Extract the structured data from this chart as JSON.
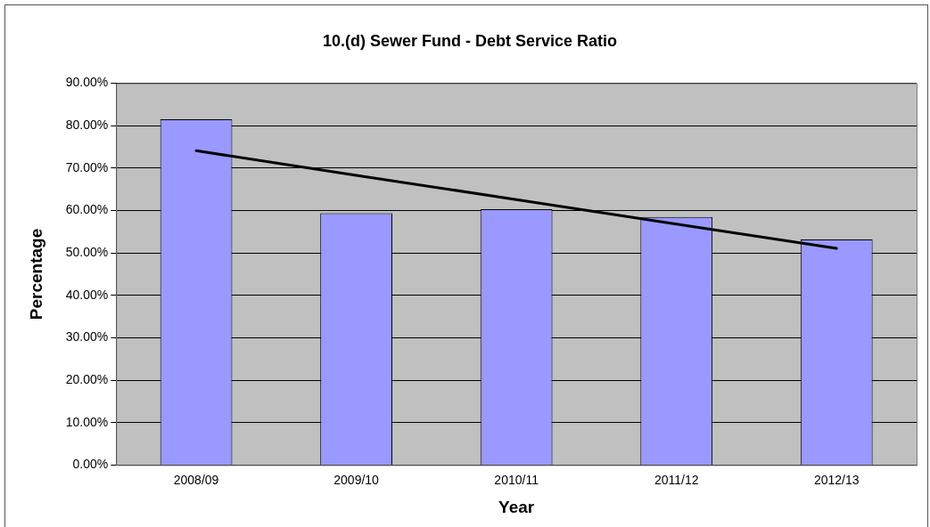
{
  "chart_data": {
    "type": "bar",
    "title": "10.(d) Sewer Fund - Debt Service Ratio",
    "xlabel": "Year",
    "ylabel": "Percentage",
    "categories": [
      "2008/09",
      "2009/10",
      "2010/11",
      "2011/12",
      "2012/13"
    ],
    "series": [
      {
        "color": "#9999ff",
        "values": [
          81.5,
          59.4,
          60.3,
          58.5,
          53.2
        ]
      },
      {
        "type": "line",
        "color": "#000000",
        "values": [
          74.1,
          68.3,
          62.6,
          56.8,
          51.1
        ]
      }
    ],
    "ylim": [
      0,
      90
    ],
    "yticks": [
      {
        "value": 0,
        "label": "0.00%"
      },
      {
        "value": 10,
        "label": "10.00%"
      },
      {
        "value": 20,
        "label": "20.00%"
      },
      {
        "value": 30,
        "label": "30.00%"
      },
      {
        "value": 40,
        "label": "40.00%"
      },
      {
        "value": 50,
        "label": "50.00%"
      },
      {
        "value": 60,
        "label": "60.00%"
      },
      {
        "value": 70,
        "label": "70.00%"
      },
      {
        "value": 80,
        "label": "80.00%"
      },
      {
        "value": 90,
        "label": "90.00%"
      }
    ],
    "grid": "y",
    "legend": false,
    "marker": "none",
    "line_style": "solid"
  }
}
